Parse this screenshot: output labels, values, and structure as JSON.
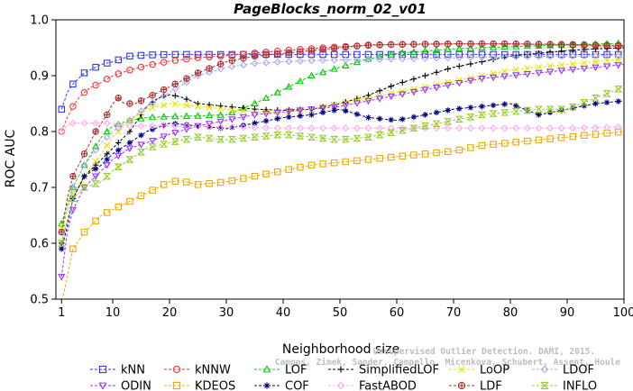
{
  "chart_data": {
    "type": "line",
    "title": "PageBlocks_norm_02_v01",
    "xlabel": "Neighborhood size",
    "ylabel": "ROC AUC",
    "xlim": [
      0,
      100
    ],
    "ylim": [
      0.5,
      1.0
    ],
    "xticks": [
      1,
      10,
      20,
      30,
      40,
      50,
      60,
      70,
      80,
      90,
      100
    ],
    "yticks": [
      0.5,
      0.6,
      0.7,
      0.8,
      0.9,
      1.0
    ],
    "legend_position": "bottom",
    "watermark": [
      "Unsupervised Outlier Detection. DAMI, 2015.",
      "Campos, Zimek, Sander, Campello, Micenkova, Schubert, Assent, Houle"
    ],
    "series": [
      {
        "name": "kNN",
        "color": "#3333ff",
        "marker": "square",
        "x": [
          1,
          2,
          3,
          4,
          5,
          6,
          8,
          10,
          13,
          16,
          20,
          30,
          40,
          50,
          60,
          70,
          80,
          90,
          100
        ],
        "y": [
          0.84,
          0.87,
          0.885,
          0.895,
          0.905,
          0.91,
          0.92,
          0.925,
          0.935,
          0.937,
          0.938,
          0.938,
          0.938,
          0.938,
          0.938,
          0.938,
          0.938,
          0.938,
          0.938
        ]
      },
      {
        "name": "kNNW",
        "color": "#ff3333",
        "marker": "circle",
        "x": [
          1,
          2,
          3,
          4,
          5,
          6,
          8,
          10,
          13,
          16,
          20,
          25,
          30,
          40,
          50,
          60,
          70,
          80,
          90,
          100
        ],
        "y": [
          0.8,
          0.825,
          0.845,
          0.86,
          0.87,
          0.878,
          0.888,
          0.9,
          0.91,
          0.918,
          0.926,
          0.932,
          0.936,
          0.945,
          0.952,
          0.956,
          0.957,
          0.957,
          0.955,
          0.952
        ]
      },
      {
        "name": "LOF",
        "color": "#00cc00",
        "marker": "triangle-up",
        "x": [
          1,
          2,
          3,
          5,
          8,
          10,
          13,
          16,
          20,
          25,
          30,
          35,
          40,
          45,
          50,
          55,
          60,
          70,
          80,
          90,
          100
        ],
        "y": [
          0.635,
          0.67,
          0.7,
          0.74,
          0.79,
          0.81,
          0.82,
          0.825,
          0.827,
          0.828,
          0.83,
          0.85,
          0.875,
          0.9,
          0.915,
          0.93,
          0.94,
          0.948,
          0.952,
          0.955,
          0.958
        ]
      },
      {
        "name": "SimplifiedLOF",
        "color": "#000000",
        "marker": "plus",
        "x": [
          1,
          2,
          3,
          5,
          8,
          10,
          13,
          16,
          18,
          20,
          22,
          25,
          30,
          35,
          40,
          45,
          50,
          55,
          60,
          65,
          70,
          75,
          80,
          85,
          90,
          95,
          100
        ],
        "y": [
          0.6,
          0.64,
          0.68,
          0.72,
          0.75,
          0.77,
          0.8,
          0.845,
          0.86,
          0.866,
          0.862,
          0.85,
          0.845,
          0.84,
          0.838,
          0.84,
          0.85,
          0.865,
          0.885,
          0.9,
          0.915,
          0.925,
          0.935,
          0.94,
          0.945,
          0.948,
          0.95
        ]
      },
      {
        "name": "LoOP",
        "color": "#e6e600",
        "marker": "x",
        "x": [
          1,
          2,
          3,
          5,
          8,
          10,
          13,
          16,
          20,
          25,
          30,
          35,
          40,
          45,
          50,
          55,
          60,
          65,
          70,
          75,
          80,
          85,
          90,
          95,
          100
        ],
        "y": [
          0.63,
          0.66,
          0.69,
          0.72,
          0.76,
          0.79,
          0.82,
          0.84,
          0.85,
          0.845,
          0.84,
          0.835,
          0.835,
          0.84,
          0.85,
          0.86,
          0.87,
          0.88,
          0.89,
          0.9,
          0.91,
          0.915,
          0.92,
          0.925,
          0.93
        ]
      },
      {
        "name": "LDOF",
        "color": "#aaaaee",
        "marker": "diamond",
        "x": [
          1,
          2,
          3,
          5,
          8,
          10,
          13,
          16,
          20,
          25,
          30,
          35,
          40,
          45,
          50,
          60,
          70,
          80,
          90,
          100
        ],
        "y": [
          0.62,
          0.66,
          0.7,
          0.74,
          0.78,
          0.8,
          0.82,
          0.845,
          0.87,
          0.9,
          0.915,
          0.922,
          0.925,
          0.927,
          0.928,
          0.93,
          0.932,
          0.934,
          0.935,
          0.936
        ]
      },
      {
        "name": "ODIN",
        "color": "#9933ff",
        "marker": "triangle-down",
        "x": [
          1,
          2,
          3,
          5,
          8,
          10,
          13,
          16,
          20,
          25,
          30,
          35,
          40,
          45,
          50,
          55,
          60,
          65,
          70,
          75,
          80,
          85,
          90,
          95,
          100
        ],
        "y": [
          0.54,
          0.62,
          0.66,
          0.7,
          0.73,
          0.75,
          0.77,
          0.78,
          0.795,
          0.81,
          0.82,
          0.83,
          0.835,
          0.84,
          0.845,
          0.855,
          0.865,
          0.875,
          0.885,
          0.895,
          0.9,
          0.905,
          0.91,
          0.915,
          0.92
        ]
      },
      {
        "name": "KDEOS",
        "color": "#f0a800",
        "marker": "square",
        "x": [
          1,
          2,
          3,
          5,
          8,
          10,
          13,
          16,
          20,
          22,
          25,
          30,
          35,
          40,
          45,
          50,
          55,
          60,
          65,
          70,
          75,
          80,
          85,
          90,
          95,
          100
        ],
        "y": [
          0.49,
          0.54,
          0.59,
          0.62,
          0.65,
          0.66,
          0.675,
          0.69,
          0.71,
          0.712,
          0.705,
          0.71,
          0.72,
          0.73,
          0.74,
          0.745,
          0.75,
          0.755,
          0.76,
          0.765,
          0.775,
          0.78,
          0.785,
          0.79,
          0.795,
          0.8
        ]
      },
      {
        "name": "COF",
        "color": "#000080",
        "marker": "asterisk",
        "x": [
          1,
          2,
          3,
          5,
          8,
          10,
          13,
          16,
          20,
          25,
          30,
          35,
          40,
          45,
          50,
          55,
          60,
          65,
          70,
          75,
          80,
          85,
          90,
          95,
          100
        ],
        "y": [
          0.59,
          0.63,
          0.68,
          0.72,
          0.74,
          0.76,
          0.78,
          0.8,
          0.815,
          0.81,
          0.805,
          0.815,
          0.825,
          0.83,
          0.84,
          0.825,
          0.82,
          0.83,
          0.84,
          0.845,
          0.85,
          0.83,
          0.84,
          0.85,
          0.855
        ]
      },
      {
        "name": "FastABOD",
        "color": "#ffaaee",
        "marker": "diamond",
        "x": [
          1,
          2,
          3,
          4,
          5,
          6,
          8,
          10,
          13,
          16,
          20,
          30,
          40,
          50,
          60,
          70,
          80,
          90,
          100
        ],
        "y": [
          0.8,
          0.81,
          0.815,
          0.815,
          0.815,
          0.815,
          0.815,
          0.815,
          0.81,
          0.81,
          0.81,
          0.808,
          0.806,
          0.806,
          0.806,
          0.806,
          0.806,
          0.806,
          0.808
        ]
      },
      {
        "name": "LDF",
        "color": "#aa3333",
        "marker": "circle-plus",
        "x": [
          1,
          2,
          3,
          5,
          7,
          9,
          10,
          11,
          12,
          14,
          16,
          20,
          25,
          30,
          35,
          40,
          45,
          50,
          55,
          60,
          70,
          80,
          90,
          100
        ],
        "y": [
          0.62,
          0.68,
          0.72,
          0.76,
          0.8,
          0.83,
          0.85,
          0.86,
          0.85,
          0.85,
          0.86,
          0.88,
          0.905,
          0.925,
          0.935,
          0.94,
          0.945,
          0.95,
          0.955,
          0.956,
          0.957,
          0.957,
          0.956,
          0.954
        ]
      },
      {
        "name": "INFLO",
        "color": "#99cc33",
        "marker": "hourglass",
        "x": [
          1,
          2,
          3,
          5,
          8,
          10,
          13,
          16,
          20,
          25,
          30,
          35,
          40,
          45,
          50,
          55,
          60,
          65,
          70,
          75,
          80,
          85,
          90,
          95,
          100
        ],
        "y": [
          0.6,
          0.64,
          0.68,
          0.7,
          0.71,
          0.73,
          0.75,
          0.77,
          0.78,
          0.79,
          0.785,
          0.79,
          0.795,
          0.79,
          0.785,
          0.79,
          0.8,
          0.81,
          0.82,
          0.83,
          0.835,
          0.84,
          0.84,
          0.86,
          0.88
        ]
      }
    ]
  }
}
